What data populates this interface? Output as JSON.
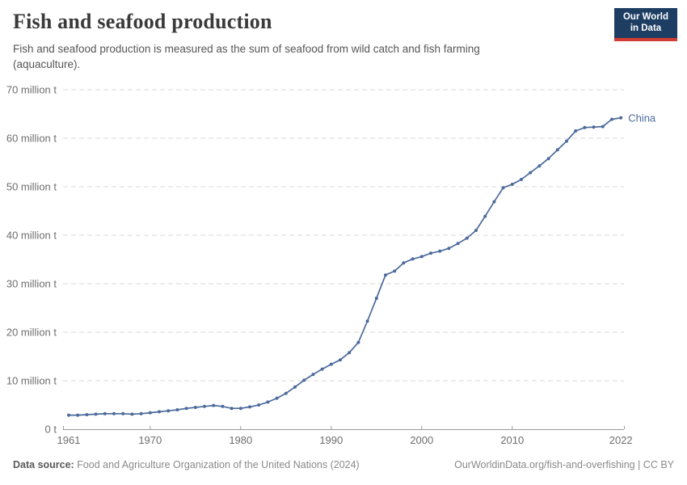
{
  "header": {
    "title": "Fish and seafood production",
    "subtitle": "Fish and seafood production is measured as the sum of seafood from wild catch and fish farming (aquaculture).",
    "logo": {
      "line1": "Our World",
      "line2": "in Data",
      "bg_color": "#1d3d63",
      "accent_color": "#d13d33"
    }
  },
  "chart_data": {
    "type": "line",
    "title": "Fish and seafood production",
    "xlabel": "",
    "ylabel": "",
    "unit": "million t",
    "grid": "horizontal-dashed",
    "legend_position": "end-of-line",
    "ylim": [
      0,
      70
    ],
    "ytick_labels": [
      "0 t",
      "10 million t",
      "20 million t",
      "30 million t",
      "40 million t",
      "50 million t",
      "60 million t",
      "70 million t"
    ],
    "xticks": [
      1961,
      1970,
      1980,
      1990,
      2000,
      2010,
      2022
    ],
    "x": [
      1961,
      1962,
      1963,
      1964,
      1965,
      1966,
      1967,
      1968,
      1969,
      1970,
      1971,
      1972,
      1973,
      1974,
      1975,
      1976,
      1977,
      1978,
      1979,
      1980,
      1981,
      1982,
      1983,
      1984,
      1985,
      1986,
      1987,
      1988,
      1989,
      1990,
      1991,
      1992,
      1993,
      1994,
      1995,
      1996,
      1997,
      1998,
      1999,
      2000,
      2001,
      2002,
      2003,
      2004,
      2005,
      2006,
      2007,
      2008,
      2009,
      2010,
      2011,
      2012,
      2013,
      2014,
      2015,
      2016,
      2017,
      2018,
      2019,
      2020,
      2021,
      2022
    ],
    "series": [
      {
        "name": "China",
        "color": "#4C6A9C",
        "values": [
          2.9,
          2.9,
          3.0,
          3.1,
          3.2,
          3.2,
          3.2,
          3.1,
          3.2,
          3.4,
          3.6,
          3.8,
          4.0,
          4.3,
          4.5,
          4.7,
          4.9,
          4.7,
          4.3,
          4.3,
          4.6,
          5.0,
          5.6,
          6.4,
          7.4,
          8.7,
          10.1,
          11.3,
          12.4,
          13.4,
          14.3,
          15.8,
          17.9,
          22.3,
          27.0,
          31.8,
          32.6,
          34.3,
          35.1,
          35.6,
          36.3,
          36.7,
          37.3,
          38.3,
          39.4,
          41.0,
          43.9,
          46.9,
          49.8,
          50.5,
          51.5,
          52.9,
          54.3,
          55.8,
          57.6,
          59.4,
          61.5,
          62.2,
          62.3,
          62.4,
          63.9,
          64.2
        ]
      }
    ],
    "colors": {
      "gridline": "#d9d9d9",
      "axis": "#9a9a9a",
      "tick_label": "#6e6e6e"
    }
  },
  "footer": {
    "source_label": "Data source:",
    "source_text": " Food and Agriculture Organization of the United Nations (2024)",
    "credit": "OurWorldinData.org/fish-and-overfishing | CC BY"
  }
}
